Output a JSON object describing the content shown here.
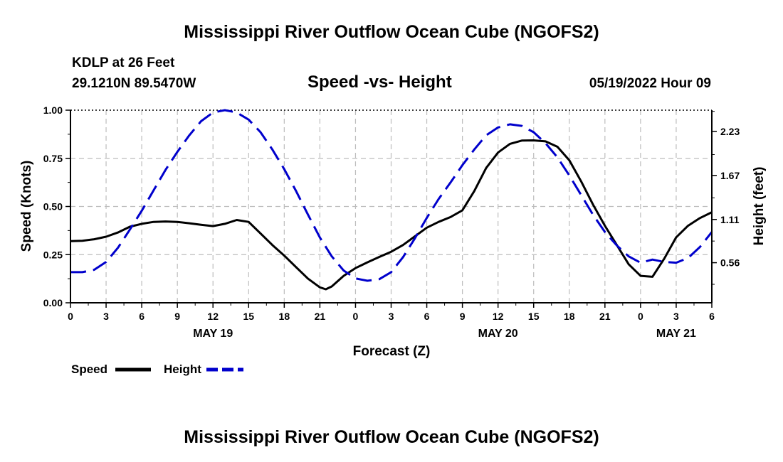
{
  "header": {
    "title": "Mississippi River Outflow Ocean Cube (NGOFS2)",
    "station": "KDLP at 26 Feet",
    "coords": "29.1210N  89.5470W",
    "subtitle": "Speed -vs- Height",
    "datetime": "05/19/2022 Hour 09",
    "footer_title": "Mississippi River Outflow Ocean Cube (NGOFS2)"
  },
  "legend": {
    "speed_label": "Speed",
    "height_label": "Height"
  },
  "colors": {
    "speed": "#000000",
    "height": "#0000cc",
    "grid": "#bdbdbd"
  },
  "chart_data": {
    "type": "line",
    "title": "Speed -vs- Height",
    "xlabel": "Forecast (Z)",
    "ylabel": "Speed (Knots)",
    "y2label": "Height (feet)",
    "xlim": [
      0,
      54
    ],
    "ylim": [
      0,
      1.0
    ],
    "y2lim": [
      0.05,
      2.5
    ],
    "x_ticks": [
      0,
      3,
      6,
      9,
      12,
      15,
      18,
      21,
      24,
      27,
      30,
      33,
      36,
      39,
      42,
      45,
      48,
      51,
      54
    ],
    "x_tick_labels": [
      "0",
      "3",
      "6",
      "9",
      "12",
      "15",
      "18",
      "21",
      "0",
      "3",
      "6",
      "9",
      "12",
      "15",
      "18",
      "21",
      "0",
      "3",
      "6"
    ],
    "x_minor_step": 1.5,
    "date_labels": [
      {
        "x": 12,
        "label": "MAY 19"
      },
      {
        "x": 36,
        "label": "MAY 20"
      },
      {
        "x": 51,
        "label": "MAY 21"
      }
    ],
    "y_ticks": [
      0.0,
      0.25,
      0.5,
      0.75,
      1.0
    ],
    "y_tick_labels": [
      "0.00",
      "0.25",
      "0.50",
      "0.75",
      "1.00"
    ],
    "y_minor_step": 0.125,
    "y2_ticks": [
      0.56,
      1.11,
      1.67,
      2.23
    ],
    "y2_tick_labels": [
      "0.56",
      "1.11",
      "1.67",
      "2.23"
    ],
    "grid": true,
    "legend": "bottom-left",
    "series": [
      {
        "name": "Speed",
        "axis": "left",
        "style": "solid",
        "x": [
          0,
          1,
          2,
          3,
          4,
          5,
          6,
          7,
          8,
          9,
          10,
          11,
          12,
          13,
          14,
          15,
          16,
          17,
          18,
          19,
          20,
          21,
          21.5,
          22,
          23,
          24,
          25,
          26,
          27,
          28,
          29,
          30,
          31,
          32,
          33,
          34,
          35,
          36,
          37,
          38,
          39,
          40,
          41,
          42,
          43,
          44,
          45,
          46,
          47,
          48,
          49,
          50,
          51,
          52,
          53,
          54
        ],
        "y": [
          0.32,
          0.322,
          0.33,
          0.343,
          0.365,
          0.395,
          0.41,
          0.42,
          0.422,
          0.42,
          0.413,
          0.405,
          0.398,
          0.41,
          0.43,
          0.42,
          0.36,
          0.3,
          0.245,
          0.185,
          0.125,
          0.08,
          0.07,
          0.085,
          0.14,
          0.18,
          0.21,
          0.238,
          0.265,
          0.3,
          0.345,
          0.39,
          0.42,
          0.445,
          0.48,
          0.58,
          0.7,
          0.78,
          0.825,
          0.842,
          0.843,
          0.838,
          0.81,
          0.74,
          0.63,
          0.51,
          0.4,
          0.3,
          0.2,
          0.14,
          0.135,
          0.23,
          0.34,
          0.4,
          0.44,
          0.47
        ]
      },
      {
        "name": "Height",
        "axis": "right",
        "style": "dashed",
        "x": [
          0,
          1,
          2,
          3,
          4,
          5,
          6,
          7,
          8,
          9,
          10,
          11,
          12,
          13,
          14,
          15,
          16,
          17,
          18,
          19,
          20,
          21,
          22,
          23,
          24,
          25,
          26,
          27,
          28,
          29,
          30,
          31,
          32,
          33,
          34,
          35,
          36,
          37,
          38,
          39,
          40,
          41,
          42,
          43,
          44,
          45,
          46,
          47,
          48,
          49,
          50,
          51,
          52,
          53,
          54
        ],
        "y": [
          0.44,
          0.44,
          0.47,
          0.57,
          0.75,
          0.98,
          1.22,
          1.48,
          1.74,
          1.97,
          2.18,
          2.36,
          2.47,
          2.5,
          2.47,
          2.38,
          2.22,
          2.0,
          1.75,
          1.47,
          1.17,
          0.88,
          0.64,
          0.46,
          0.36,
          0.33,
          0.35,
          0.44,
          0.63,
          0.87,
          1.13,
          1.37,
          1.58,
          1.8,
          2.0,
          2.18,
          2.28,
          2.32,
          2.3,
          2.22,
          2.08,
          1.9,
          1.67,
          1.42,
          1.17,
          0.95,
          0.78,
          0.64,
          0.56,
          0.6,
          0.57,
          0.56,
          0.62,
          0.76,
          0.95
        ]
      }
    ]
  }
}
